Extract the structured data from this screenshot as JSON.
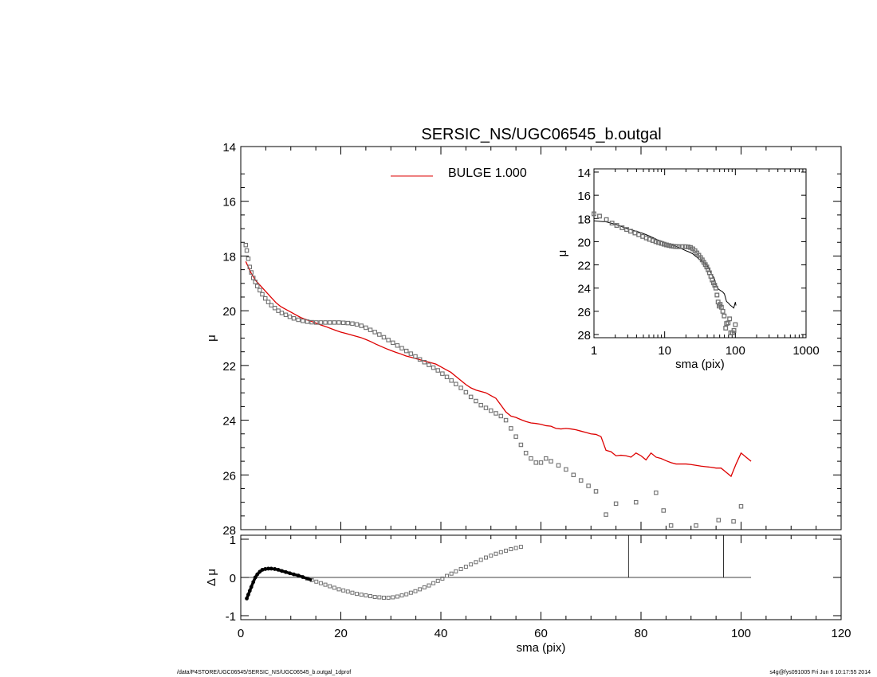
{
  "chart_data": [
    {
      "type": "scatter",
      "title": "SERSIC_NS/UGC06545_b.outgal",
      "xlabel": "",
      "ylabel": "μ",
      "xlim": [
        0,
        120
      ],
      "ylim": [
        28,
        14
      ],
      "y_inverted": true,
      "yticks": [
        14,
        16,
        18,
        20,
        22,
        24,
        26,
        28
      ],
      "legend": {
        "placement": "top-center",
        "entries": [
          {
            "label": "BULGE  1.000",
            "color": "#dd0000"
          }
        ]
      },
      "series": [
        {
          "name": "",
          "style": "squares",
          "color": "#707070",
          "x": [
            1.0,
            1.2,
            1.5,
            1.8,
            2.1,
            2.5,
            2.9,
            3.3,
            3.8,
            4.3,
            4.9,
            5.5,
            6.1,
            6.8,
            7.5,
            8.2,
            9.0,
            9.8,
            10.6,
            11.5,
            12.4,
            13.3,
            14.2,
            15.1,
            16.0,
            16.9,
            17.8,
            18.7,
            19.6,
            20.5,
            21.4,
            22.3,
            23.2,
            24.1,
            25.0,
            25.9,
            26.8,
            27.7,
            28.6,
            29.5,
            30.4,
            31.3,
            32.2,
            33.1,
            34.0,
            34.9,
            35.8,
            36.7,
            37.6,
            38.5,
            39.4,
            40.3,
            41.2,
            42.1,
            43.0,
            44.0,
            45.0,
            46.0,
            47.0,
            48.0,
            49.0,
            50.0,
            51.0,
            52.0,
            53.0,
            54.0,
            55.0,
            56.0,
            57.0,
            58.0,
            59.0,
            60.0,
            61.0,
            62.0,
            63.5,
            65.0,
            66.5,
            68.0,
            69.5,
            71.0,
            73.0,
            75.0,
            79.0,
            83.0,
            84.5,
            86.0,
            91.0,
            95.5,
            98.5,
            100.0
          ],
          "y": [
            17.6,
            17.8,
            18.1,
            18.4,
            18.6,
            18.8,
            18.95,
            19.1,
            19.25,
            19.4,
            19.55,
            19.68,
            19.8,
            19.9,
            20.0,
            20.08,
            20.15,
            20.22,
            20.28,
            20.33,
            20.37,
            20.4,
            20.42,
            20.43,
            20.43,
            20.43,
            20.43,
            20.43,
            20.43,
            20.44,
            20.45,
            20.47,
            20.5,
            20.55,
            20.62,
            20.7,
            20.78,
            20.87,
            20.97,
            21.07,
            21.17,
            21.27,
            21.37,
            21.47,
            21.57,
            21.67,
            21.78,
            21.88,
            21.98,
            22.08,
            22.18,
            22.3,
            22.42,
            22.55,
            22.68,
            22.82,
            22.98,
            23.15,
            23.3,
            23.45,
            23.55,
            23.65,
            23.75,
            23.85,
            24.0,
            24.3,
            24.6,
            24.9,
            25.2,
            25.4,
            25.55,
            25.55,
            25.4,
            25.5,
            25.65,
            25.8,
            26.0,
            26.2,
            26.4,
            26.6,
            27.45,
            27.05,
            27.0,
            26.65,
            27.3,
            27.85,
            27.85,
            27.65,
            27.7,
            27.15
          ]
        },
        {
          "name": "BULGE  1.000",
          "style": "line",
          "color": "#dd0000",
          "x": [
            1.0,
            2,
            3,
            4,
            5,
            6,
            7,
            8,
            9,
            10,
            11,
            12,
            13,
            14,
            15,
            16,
            17,
            18,
            19,
            20,
            21,
            22,
            23,
            24,
            25,
            26,
            27,
            28,
            29,
            30,
            31,
            32,
            33,
            34,
            35,
            36,
            37,
            38,
            39,
            40,
            41,
            42,
            43,
            44,
            45,
            46,
            47,
            48,
            49,
            50,
            51,
            52,
            53,
            54,
            55,
            56,
            57,
            58,
            59,
            60,
            61,
            62,
            63,
            64,
            65,
            66,
            67,
            68,
            69,
            70,
            71,
            72,
            73,
            74,
            75,
            76,
            77,
            78,
            79,
            80,
            81,
            82,
            83,
            84,
            85,
            86,
            87,
            88,
            89,
            90,
            91,
            92,
            93,
            94,
            95,
            96,
            97,
            98,
            99,
            100,
            101,
            102
          ],
          "y": [
            18.2,
            18.6,
            18.9,
            19.1,
            19.3,
            19.5,
            19.7,
            19.85,
            19.95,
            20.05,
            20.15,
            20.25,
            20.32,
            20.38,
            20.45,
            20.52,
            20.58,
            20.65,
            20.72,
            20.78,
            20.83,
            20.88,
            20.93,
            20.98,
            21.05,
            21.13,
            21.22,
            21.3,
            21.38,
            21.45,
            21.52,
            21.58,
            21.65,
            21.7,
            21.75,
            21.8,
            21.85,
            21.9,
            21.95,
            22.05,
            22.15,
            22.25,
            22.4,
            22.55,
            22.7,
            22.82,
            22.9,
            22.95,
            23.0,
            23.1,
            23.2,
            23.45,
            23.7,
            23.85,
            23.9,
            23.98,
            24.05,
            24.1,
            24.12,
            24.15,
            24.2,
            24.22,
            24.3,
            24.32,
            24.3,
            24.32,
            24.35,
            24.4,
            24.45,
            24.5,
            24.52,
            24.6,
            25.1,
            25.15,
            25.3,
            25.28,
            25.3,
            25.35,
            25.2,
            25.3,
            25.45,
            25.2,
            25.35,
            25.4,
            25.48,
            25.55,
            25.6,
            25.6,
            25.6,
            25.62,
            25.65,
            25.68,
            25.7,
            25.72,
            25.75,
            25.75,
            25.9,
            26.05,
            25.6,
            25.2,
            25.35,
            25.5
          ]
        }
      ]
    },
    {
      "type": "scatter",
      "title": "",
      "xlabel": "sma (pix)",
      "ylabel": "Δ μ",
      "xlim": [
        0,
        120
      ],
      "ylim": [
        -1,
        1
      ],
      "xticks": [
        0,
        20,
        40,
        60,
        80,
        100,
        120
      ],
      "yticks": [
        -1,
        0,
        1
      ],
      "reference_line_y": 0,
      "vertical_lines_x": [
        77.5,
        96.5
      ],
      "series": [
        {
          "name": "",
          "style": "squares",
          "color": "#707070",
          "x": [
            1.2,
            1.5,
            1.8,
            2.1,
            2.5,
            2.9,
            3.3,
            3.8,
            4.3,
            4.9,
            5.5,
            6.1,
            6.8,
            7.5,
            8.2,
            9.0,
            9.8,
            10.6,
            11.5,
            12.4,
            13.3,
            14.2,
            15.1,
            16.0,
            16.9,
            17.8,
            18.7,
            19.6,
            20.5,
            21.4,
            22.3,
            23.2,
            24.1,
            25.0,
            25.9,
            26.8,
            27.7,
            28.6,
            29.5,
            30.4,
            31.3,
            32.2,
            33.1,
            34.0,
            34.9,
            35.8,
            36.7,
            37.6,
            38.5,
            39.4,
            40.3,
            41.2,
            42.1,
            43.0,
            44.0,
            45.0,
            46.0,
            47.0,
            48.0,
            49.0,
            50.0,
            51.0,
            52.0,
            53.0,
            54.0,
            55.0,
            56.0
          ],
          "y": [
            -0.55,
            -0.45,
            -0.35,
            -0.25,
            -0.12,
            0.0,
            0.08,
            0.15,
            0.2,
            0.22,
            0.23,
            0.23,
            0.22,
            0.2,
            0.17,
            0.14,
            0.11,
            0.08,
            0.05,
            0.01,
            -0.03,
            -0.07,
            -0.11,
            -0.15,
            -0.19,
            -0.23,
            -0.27,
            -0.31,
            -0.34,
            -0.37,
            -0.4,
            -0.43,
            -0.45,
            -0.47,
            -0.49,
            -0.51,
            -0.52,
            -0.53,
            -0.53,
            -0.52,
            -0.5,
            -0.47,
            -0.44,
            -0.4,
            -0.36,
            -0.31,
            -0.26,
            -0.21,
            -0.15,
            -0.09,
            -0.03,
            0.04,
            0.1,
            0.16,
            0.22,
            0.28,
            0.34,
            0.4,
            0.46,
            0.52,
            0.57,
            0.62,
            0.66,
            0.7,
            0.74,
            0.77,
            0.8
          ]
        }
      ]
    },
    {
      "type": "scatter",
      "title": "",
      "xlabel": "sma (pix)",
      "ylabel": "μ",
      "x_log": true,
      "xlim": [
        1,
        1000
      ],
      "ylim": [
        28,
        14
      ],
      "xticks": [
        1,
        10,
        100,
        1000
      ],
      "yticks": [
        14,
        16,
        18,
        20,
        22,
        24,
        26,
        28
      ],
      "series": [
        {
          "name": "",
          "style": "squares",
          "color": "#707070",
          "x": [
            1.0,
            1.2,
            1.5,
            1.8,
            2.1,
            2.5,
            2.9,
            3.3,
            3.8,
            4.3,
            4.9,
            5.5,
            6.1,
            6.8,
            7.5,
            8.2,
            9.0,
            9.8,
            10.6,
            11.5,
            12.4,
            13.3,
            14.2,
            15.1,
            16.0,
            17.8,
            19.6,
            21.4,
            23.2,
            25.0,
            26.8,
            28.6,
            30.4,
            32.2,
            34.0,
            35.8,
            37.6,
            39.4,
            41.2,
            43.0,
            45.0,
            47.0,
            49.0,
            51.0,
            53.0,
            55.0,
            57.0,
            59.0,
            61.0,
            63.5,
            66.5,
            69.5,
            73.0,
            75.0,
            79.0,
            83.0,
            86.0,
            91.0,
            95.5,
            100.0
          ],
          "y": [
            17.6,
            17.8,
            18.1,
            18.4,
            18.6,
            18.8,
            18.95,
            19.1,
            19.25,
            19.4,
            19.55,
            19.68,
            19.8,
            19.9,
            20.0,
            20.08,
            20.15,
            20.22,
            20.28,
            20.33,
            20.37,
            20.4,
            20.42,
            20.43,
            20.43,
            20.43,
            20.43,
            20.45,
            20.5,
            20.62,
            20.78,
            20.97,
            21.17,
            21.37,
            21.57,
            21.78,
            21.98,
            22.18,
            22.42,
            22.68,
            22.98,
            23.3,
            23.55,
            23.75,
            24.0,
            24.6,
            25.2,
            25.55,
            25.4,
            25.65,
            26.0,
            26.4,
            27.45,
            27.05,
            27.0,
            26.65,
            27.85,
            27.85,
            27.65,
            27.15
          ]
        },
        {
          "name": "",
          "style": "line",
          "color": "#000000",
          "x": [
            1.0,
            1.5,
            2,
            3,
            4,
            5,
            6,
            8,
            10,
            12,
            14,
            16,
            18,
            20,
            22,
            25,
            28,
            31,
            34,
            37,
            40,
            43,
            46,
            50,
            54,
            58,
            62,
            66,
            70,
            75,
            80,
            85,
            90,
            95,
            100,
            102
          ],
          "y": [
            18.2,
            18.3,
            18.5,
            18.9,
            19.1,
            19.3,
            19.5,
            19.85,
            20.05,
            20.25,
            20.38,
            20.52,
            20.65,
            20.78,
            20.88,
            21.05,
            21.3,
            21.52,
            21.7,
            21.85,
            22.05,
            22.4,
            22.82,
            23.1,
            23.85,
            24.1,
            24.22,
            24.32,
            24.5,
            25.15,
            25.3,
            25.48,
            25.6,
            25.72,
            25.2,
            25.5
          ]
        }
      ]
    }
  ],
  "footer": {
    "left": "/data/P4STORE/UGC06545/SERSIC_NS/UGC06545_b.outgal_1dprof",
    "right": "s4g@fys091005  Fri Jun  6 10:17:55 2014"
  }
}
